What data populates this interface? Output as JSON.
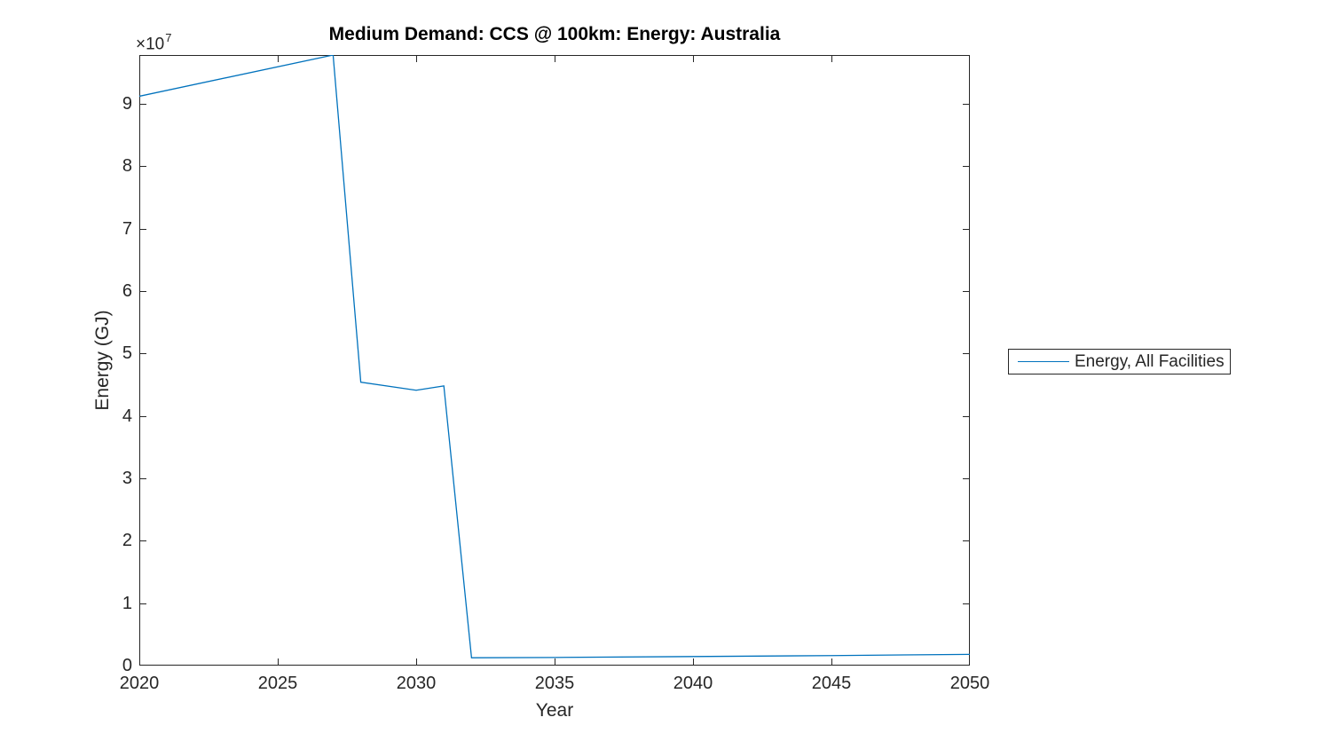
{
  "figure": {
    "title": "Medium Demand: CCS @ 100km: Energy: Australia",
    "xlabel": "Year",
    "ylabel": "Energy (GJ)",
    "exponent_base": "×10",
    "exponent_power": "7",
    "background_color": "#ffffff",
    "axis_color": "#262626",
    "text_color": "#262626"
  },
  "legend": {
    "position": "outside-right",
    "entries": [
      {
        "label": "Energy, All Facilities",
        "color": "#0072BD"
      }
    ]
  },
  "chart_data": {
    "type": "line",
    "title": "Medium Demand: CCS @ 100km: Energy: Australia",
    "xlabel": "Year",
    "ylabel": "Energy (GJ)",
    "xlim": [
      2020,
      2050
    ],
    "ylim": [
      0,
      97800000
    ],
    "x_ticks": [
      2020,
      2025,
      2030,
      2035,
      2040,
      2045,
      2050
    ],
    "y_ticks": [
      0,
      10000000,
      20000000,
      30000000,
      40000000,
      50000000,
      60000000,
      70000000,
      80000000,
      90000000
    ],
    "y_tick_labels": [
      "0",
      "1",
      "2",
      "3",
      "4",
      "5",
      "6",
      "7",
      "8",
      "9"
    ],
    "grid": false,
    "box": true,
    "tick_direction": "in",
    "series": [
      {
        "name": "Energy, All Facilities",
        "color": "#0072BD",
        "points": [
          [
            2020,
            91200000
          ],
          [
            2027,
            97800000
          ],
          [
            2028,
            45400000
          ],
          [
            2030,
            44100000
          ],
          [
            2031,
            44800000
          ],
          [
            2032,
            1250000
          ],
          [
            2035,
            1300000
          ],
          [
            2040,
            1450000
          ],
          [
            2045,
            1600000
          ],
          [
            2050,
            1800000
          ]
        ]
      }
    ]
  }
}
